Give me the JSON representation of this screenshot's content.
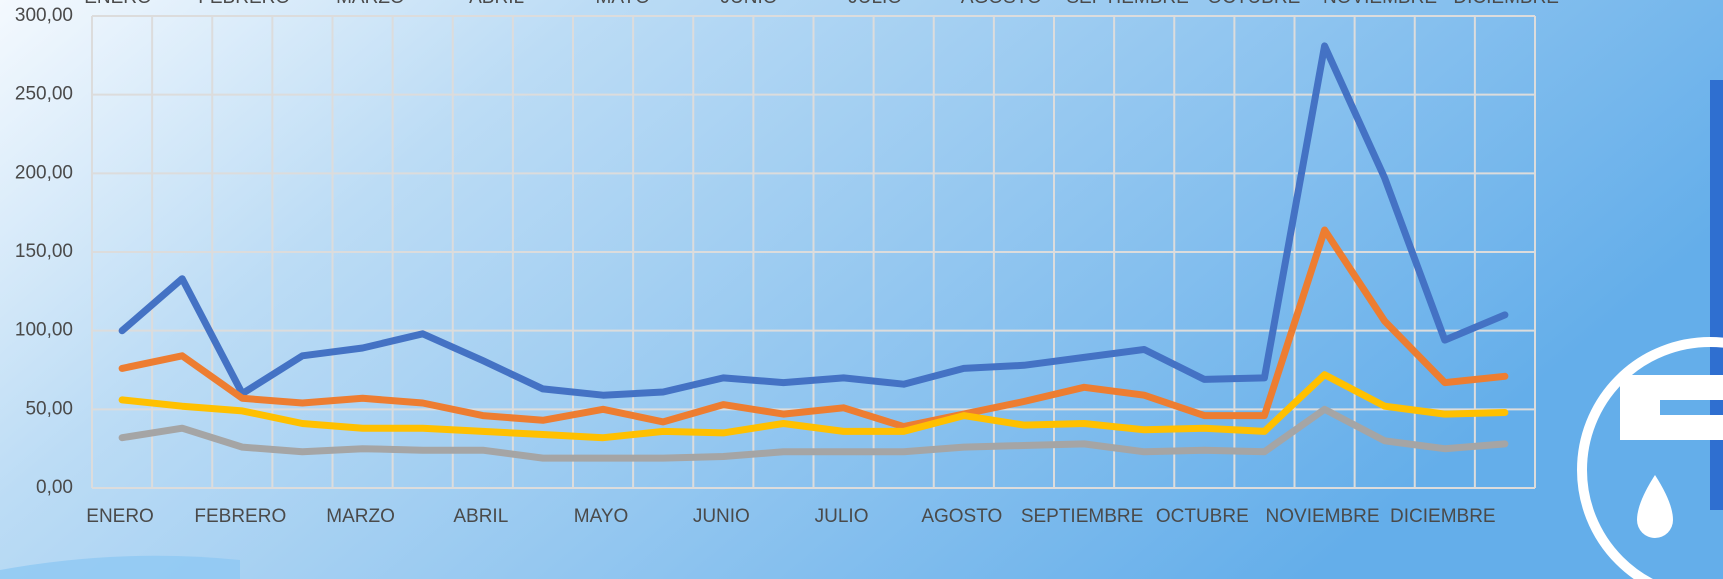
{
  "chart_data": {
    "type": "line",
    "categories": [
      "ENERO",
      null,
      "FEBRERO",
      null,
      "MARZO",
      null,
      "ABRIL",
      null,
      "MAYO",
      null,
      "JUNIO",
      null,
      "JULIO",
      null,
      "AGOSTO",
      null,
      "SEPTIEMBRE",
      null,
      "OCTUBRE",
      null,
      "NOVIEMBRE",
      null,
      "DICIEMBRE",
      null
    ],
    "x2categories": [
      "ENERO",
      "FEBRERO",
      "MARZO",
      "ABRIL",
      "MAYO",
      "JUNIO",
      "JULIO",
      "AGOSTO",
      "SEPTIEMBRE",
      "OCTUBRE",
      "NOVIEMBRE",
      "DICIEMBRE"
    ],
    "series": [
      {
        "color": "#4472c4",
        "values": [
          100,
          133,
          60,
          84,
          89,
          98,
          81,
          63,
          59,
          61,
          70,
          67,
          70,
          66,
          76,
          78,
          83,
          88,
          69,
          70,
          281,
          197,
          94,
          110
        ]
      },
      {
        "color": "#ed7d31",
        "values": [
          76,
          84,
          57,
          54,
          57,
          54,
          46,
          43,
          50,
          42,
          53,
          47,
          51,
          39,
          47,
          55,
          64,
          59,
          46,
          46,
          164,
          106,
          67,
          71
        ]
      },
      {
        "color": "#ffc000",
        "values": [
          56,
          52,
          49,
          41,
          38,
          38,
          36,
          34,
          32,
          36,
          35,
          41,
          36,
          36,
          46,
          40,
          41,
          37,
          38,
          36,
          72,
          52,
          47,
          48
        ]
      },
      {
        "color": "#a5a5a5",
        "values": [
          32,
          38,
          26,
          23,
          25,
          24,
          24,
          19,
          19,
          19,
          20,
          23,
          23,
          23,
          26,
          27,
          28,
          23,
          24,
          23,
          50,
          30,
          25,
          28
        ]
      }
    ],
    "ylim": [
      0,
      300
    ],
    "yticks": [
      {
        "value": 0,
        "label": "0,00"
      },
      {
        "value": 50,
        "label": "50,00"
      },
      {
        "value": 100,
        "label": "100,00"
      },
      {
        "value": 150,
        "label": "150,00"
      },
      {
        "value": 200,
        "label": "200,00"
      },
      {
        "value": 250,
        "label": "250,00"
      },
      {
        "value": 300,
        "label": "300,00"
      }
    ],
    "grid": true
  }
}
